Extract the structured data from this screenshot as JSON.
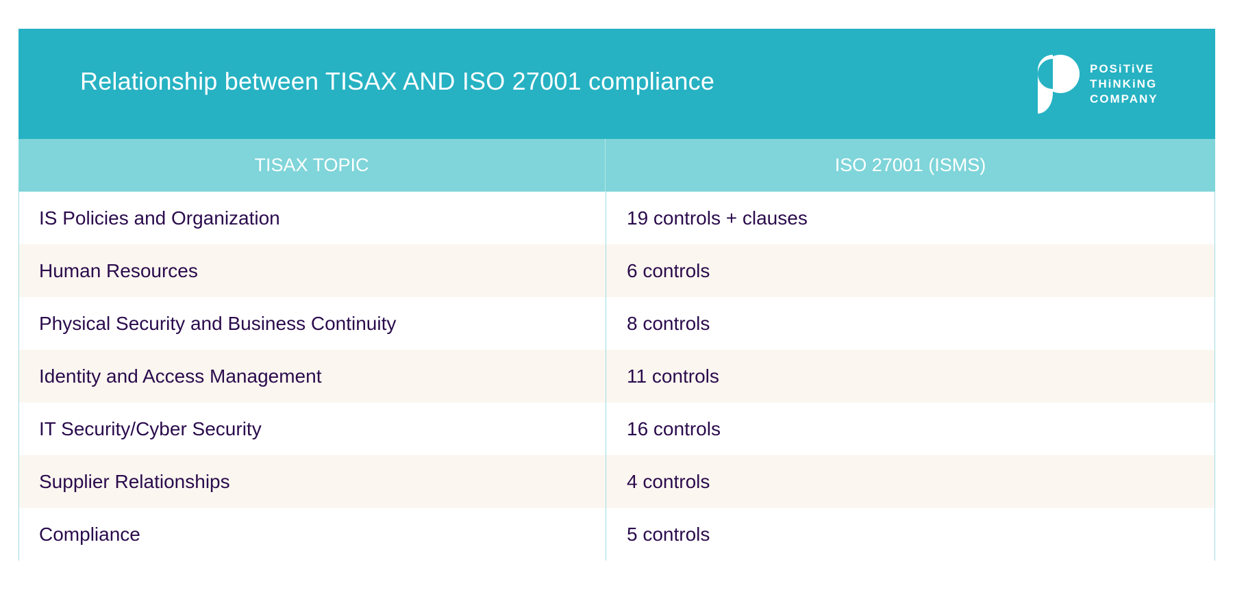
{
  "header": {
    "title": "Relationship between TISAX AND ISO 27001 compliance",
    "logo": {
      "lines": [
        "POSiTiVE",
        "THiNKiNG",
        "COMPANY"
      ],
      "icon": "positive-thinking-logo-icon"
    }
  },
  "table": {
    "columns": [
      "TISAX TOPIC",
      "ISO 27001 (ISMS)"
    ],
    "rows": [
      [
        "IS Policies and Organization",
        "19 controls + clauses"
      ],
      [
        "Human Resources",
        "6 controls"
      ],
      [
        "Physical Security and Business Continuity",
        "8 controls"
      ],
      [
        "Identity and Access Management",
        "11 controls"
      ],
      [
        "IT Security/Cyber Security",
        "16 controls"
      ],
      [
        "Supplier Relationships",
        "4 controls"
      ],
      [
        "Compliance",
        "5 controls"
      ]
    ]
  },
  "colors": {
    "banner": "#26b2c3",
    "subheader": "#7fd5d9",
    "alt_row": "#fbf6f0",
    "text": "#2a0b4c"
  }
}
